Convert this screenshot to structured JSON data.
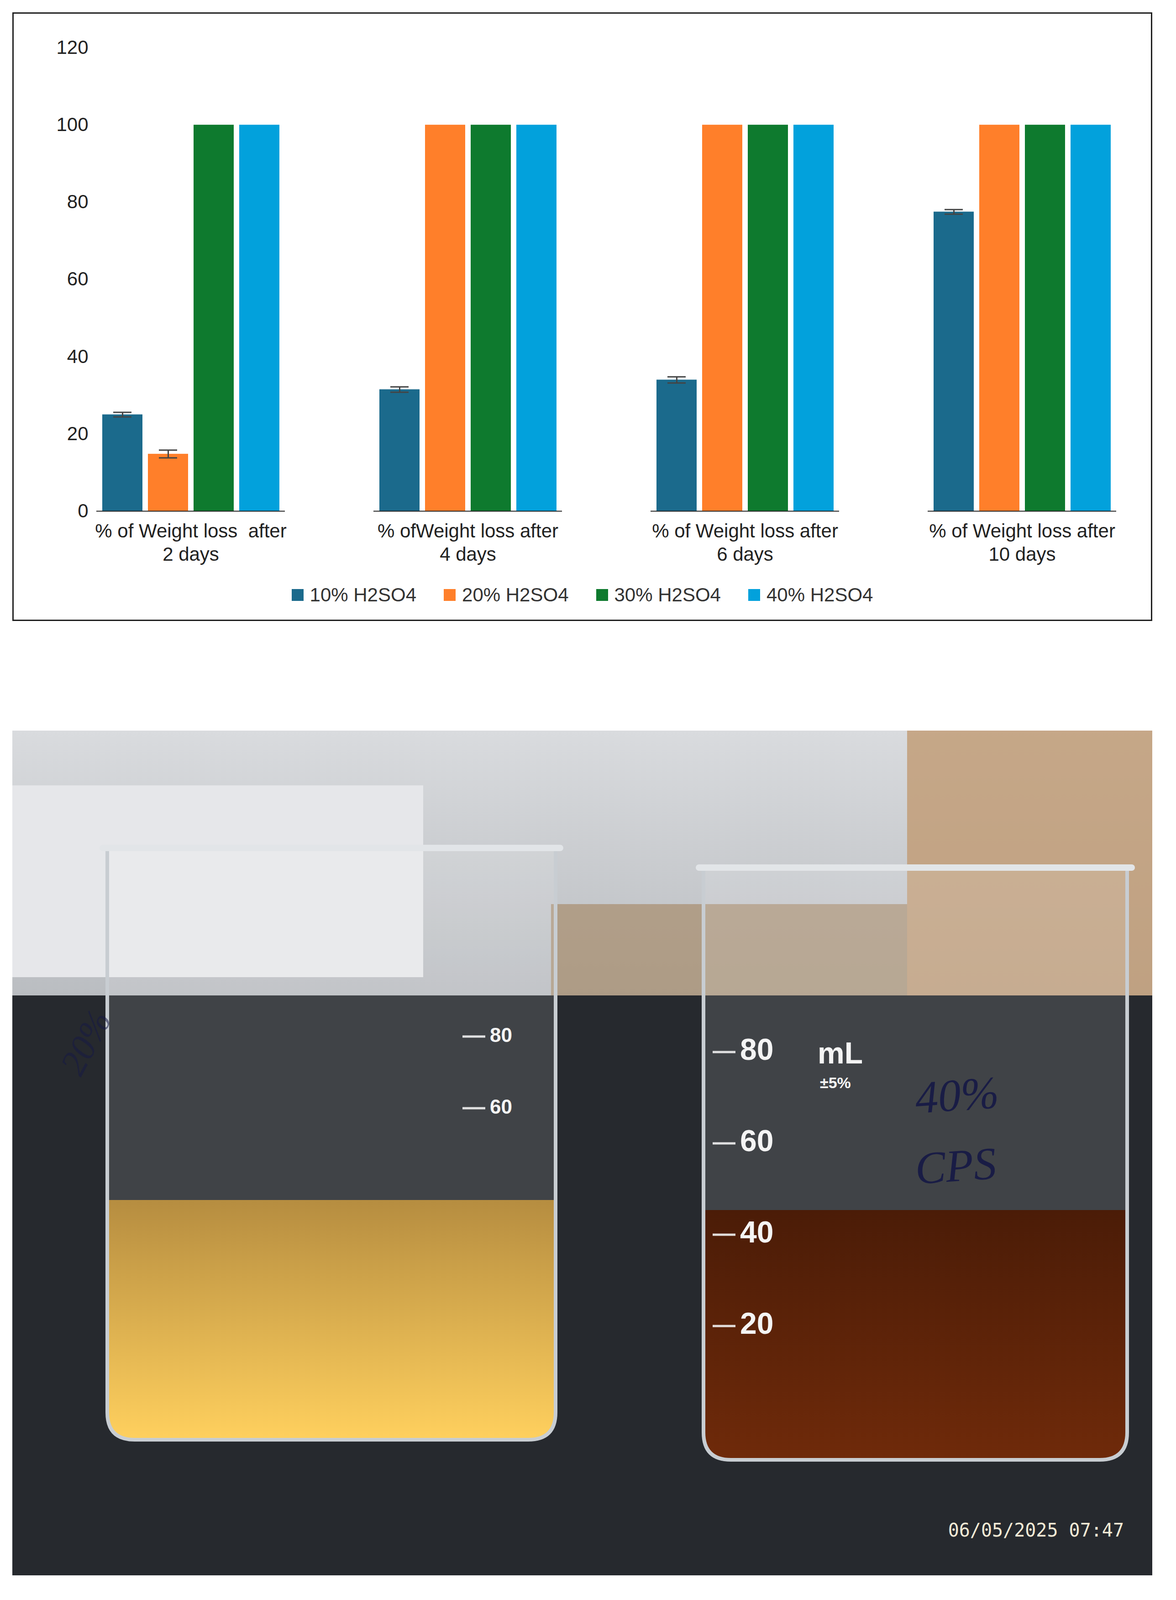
{
  "chart_data": {
    "type": "bar",
    "categories": [
      "% of Weight loss  after 2 days",
      "% ofWeight loss after 4 days",
      "% of Weight loss after 6 days",
      "% of Weight loss after 10 days"
    ],
    "series": [
      {
        "name": "10% H2SO4",
        "color": "#1B6A8C",
        "values": [
          25,
          31.5,
          34,
          77.5
        ],
        "errors": [
          0.6,
          0.7,
          0.8,
          0.6
        ]
      },
      {
        "name": "20% H2SO4",
        "color": "#FF7F2A",
        "values": [
          14.8,
          100,
          100,
          100
        ],
        "errors": [
          1,
          null,
          null,
          null
        ]
      },
      {
        "name": "30% H2SO4",
        "color": "#0E7A2E",
        "values": [
          100,
          100,
          100,
          100
        ],
        "errors": [
          null,
          null,
          null,
          null
        ]
      },
      {
        "name": "40% H2SO4",
        "color": "#02A1DC",
        "values": [
          100,
          100,
          100,
          100
        ],
        "errors": [
          null,
          null,
          null,
          null
        ]
      }
    ],
    "ylim": [
      0,
      120
    ],
    "yticks": [
      0,
      20,
      40,
      60,
      80,
      100,
      120
    ],
    "grid": false,
    "legend": "bottom"
  },
  "photo": {
    "timestamp": "06/05/2025 07:47",
    "beakers": [
      {
        "labels": [
          "20%"
        ],
        "graduations": [
          80,
          60
        ],
        "color": "#D9A84C"
      },
      {
        "labels": [
          "40%",
          "CPS"
        ],
        "graduations": [
          80,
          60,
          40,
          20
        ],
        "unit": "mL",
        "tolerance": "±5%",
        "color": "#5A2208"
      }
    ]
  }
}
